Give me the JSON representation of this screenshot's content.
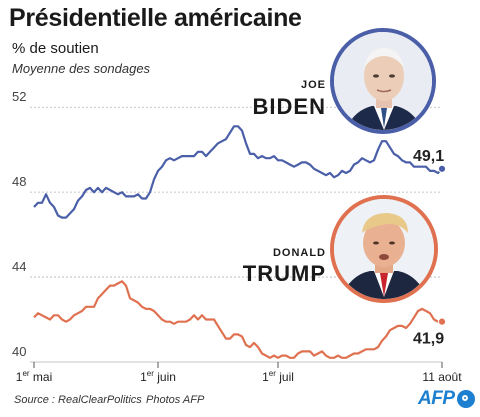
{
  "header": {
    "title": "Présidentielle américaine",
    "subtitle": "% de soutien",
    "subtitle2": "Moyenne des sondages"
  },
  "candidates": {
    "biden": {
      "first": "Joe",
      "last": "Biden",
      "color": "#4a5fa8",
      "final_label": "49,1"
    },
    "trump": {
      "first": "Donald",
      "last": "Trump",
      "color": "#e07150",
      "final_label": "41,9"
    }
  },
  "footer": {
    "source": "Source : RealClearPolitics",
    "credit": "Photos AFP",
    "logo": "AFP"
  },
  "chart_data": {
    "type": "line",
    "ylim": [
      40,
      53
    ],
    "y_ticks": [
      40,
      44,
      48,
      52
    ],
    "x_range": [
      0,
      102
    ],
    "x_ticks": [
      {
        "x": 0,
        "label": "1",
        "sup": "er",
        "rest": " mai"
      },
      {
        "x": 31,
        "label": "1",
        "sup": "er",
        "rest": " juin"
      },
      {
        "x": 61,
        "label": "1",
        "sup": "er",
        "rest": " juil"
      },
      {
        "x": 102,
        "label": "11 août",
        "sup": "",
        "rest": ""
      }
    ],
    "series": [
      {
        "name": "Biden",
        "color": "#4a5fa8",
        "x": [
          0,
          1,
          2,
          3,
          4,
          5,
          6,
          7,
          8,
          9,
          10,
          11,
          12,
          13,
          14,
          15,
          16,
          17,
          18,
          19,
          20,
          21,
          22,
          23,
          24,
          25,
          26,
          27,
          28,
          29,
          30,
          31,
          32,
          33,
          34,
          35,
          36,
          37,
          38,
          39,
          40,
          41,
          42,
          43,
          44,
          45,
          46,
          47,
          48,
          49,
          50,
          51,
          52,
          53,
          54,
          55,
          56,
          57,
          58,
          59,
          60,
          61,
          62,
          63,
          64,
          65,
          66,
          67,
          68,
          69,
          70,
          71,
          72,
          73,
          74,
          75,
          76,
          77,
          78,
          79,
          80,
          81,
          82,
          83,
          84,
          85,
          86,
          87,
          88,
          89,
          90,
          91,
          92,
          93,
          94,
          95,
          96,
          97,
          98,
          99,
          100,
          101,
          102
        ],
        "values": [
          47.3,
          47.5,
          47.5,
          47.9,
          47.5,
          47.3,
          46.9,
          46.8,
          46.8,
          47.0,
          47.2,
          47.6,
          47.8,
          48.1,
          48.2,
          48.0,
          48.2,
          48.0,
          48.2,
          48.1,
          48.0,
          47.9,
          48.0,
          47.8,
          47.8,
          47.8,
          47.9,
          47.7,
          47.7,
          48.0,
          48.6,
          49.0,
          49.2,
          49.5,
          49.6,
          49.5,
          49.6,
          49.7,
          49.7,
          49.7,
          49.7,
          49.9,
          49.9,
          49.7,
          49.9,
          50.1,
          50.3,
          50.4,
          50.5,
          50.8,
          51.1,
          51.1,
          50.9,
          50.3,
          49.8,
          49.8,
          49.6,
          49.7,
          49.6,
          49.6,
          49.7,
          49.5,
          49.5,
          49.4,
          49.3,
          49.2,
          49.3,
          49.4,
          49.4,
          49.3,
          49.1,
          49.0,
          48.9,
          48.8,
          48.9,
          48.7,
          48.8,
          49.0,
          48.9,
          49.0,
          49.3,
          49.4,
          49.6,
          49.5,
          49.4,
          49.5,
          50.0,
          50.4,
          50.4,
          50.1,
          49.8,
          49.7,
          49.5,
          49.4,
          49.4,
          49.2,
          49.2,
          49.2,
          49.2,
          49.0,
          49.0,
          48.9,
          49.1
        ]
      },
      {
        "name": "Trump",
        "color": "#e07150",
        "x": [
          0,
          1,
          2,
          3,
          4,
          5,
          6,
          7,
          8,
          9,
          10,
          11,
          12,
          13,
          14,
          15,
          16,
          17,
          18,
          19,
          20,
          21,
          22,
          23,
          24,
          25,
          26,
          27,
          28,
          29,
          30,
          31,
          32,
          33,
          34,
          35,
          36,
          37,
          38,
          39,
          40,
          41,
          42,
          43,
          44,
          45,
          46,
          47,
          48,
          49,
          50,
          51,
          52,
          53,
          54,
          55,
          56,
          57,
          58,
          59,
          60,
          61,
          62,
          63,
          64,
          65,
          66,
          67,
          68,
          69,
          70,
          71,
          72,
          73,
          74,
          75,
          76,
          77,
          78,
          79,
          80,
          81,
          82,
          83,
          84,
          85,
          86,
          87,
          88,
          89,
          90,
          91,
          92,
          93,
          94,
          95,
          96,
          97,
          98,
          99,
          100,
          101,
          102
        ],
        "values": [
          42.1,
          42.3,
          42.2,
          42.1,
          42.0,
          42.2,
          42.2,
          42.0,
          41.9,
          42.0,
          42.2,
          42.3,
          42.4,
          42.6,
          42.6,
          42.6,
          43.0,
          43.2,
          43.4,
          43.6,
          43.6,
          43.7,
          43.8,
          43.6,
          43.0,
          42.9,
          42.8,
          42.6,
          42.5,
          42.5,
          42.4,
          42.2,
          42.0,
          41.9,
          41.9,
          41.8,
          41.9,
          41.9,
          41.9,
          42.0,
          42.2,
          42.0,
          42.2,
          42.0,
          42.0,
          42.0,
          41.7,
          41.4,
          41.1,
          41.1,
          41.3,
          41.3,
          41.2,
          40.8,
          40.7,
          40.9,
          40.7,
          40.4,
          40.3,
          40.2,
          40.3,
          40.2,
          40.3,
          40.3,
          40.2,
          40.2,
          40.4,
          40.5,
          40.5,
          40.5,
          40.3,
          40.4,
          40.5,
          40.3,
          40.2,
          40.2,
          40.3,
          40.2,
          40.2,
          40.3,
          40.4,
          40.4,
          40.5,
          40.6,
          40.6,
          40.6,
          40.7,
          41.0,
          41.2,
          41.5,
          41.6,
          41.7,
          41.7,
          41.6,
          41.8,
          42.1,
          42.4,
          42.5,
          42.4,
          42.3,
          42.0,
          41.9,
          41.9
        ]
      }
    ]
  }
}
